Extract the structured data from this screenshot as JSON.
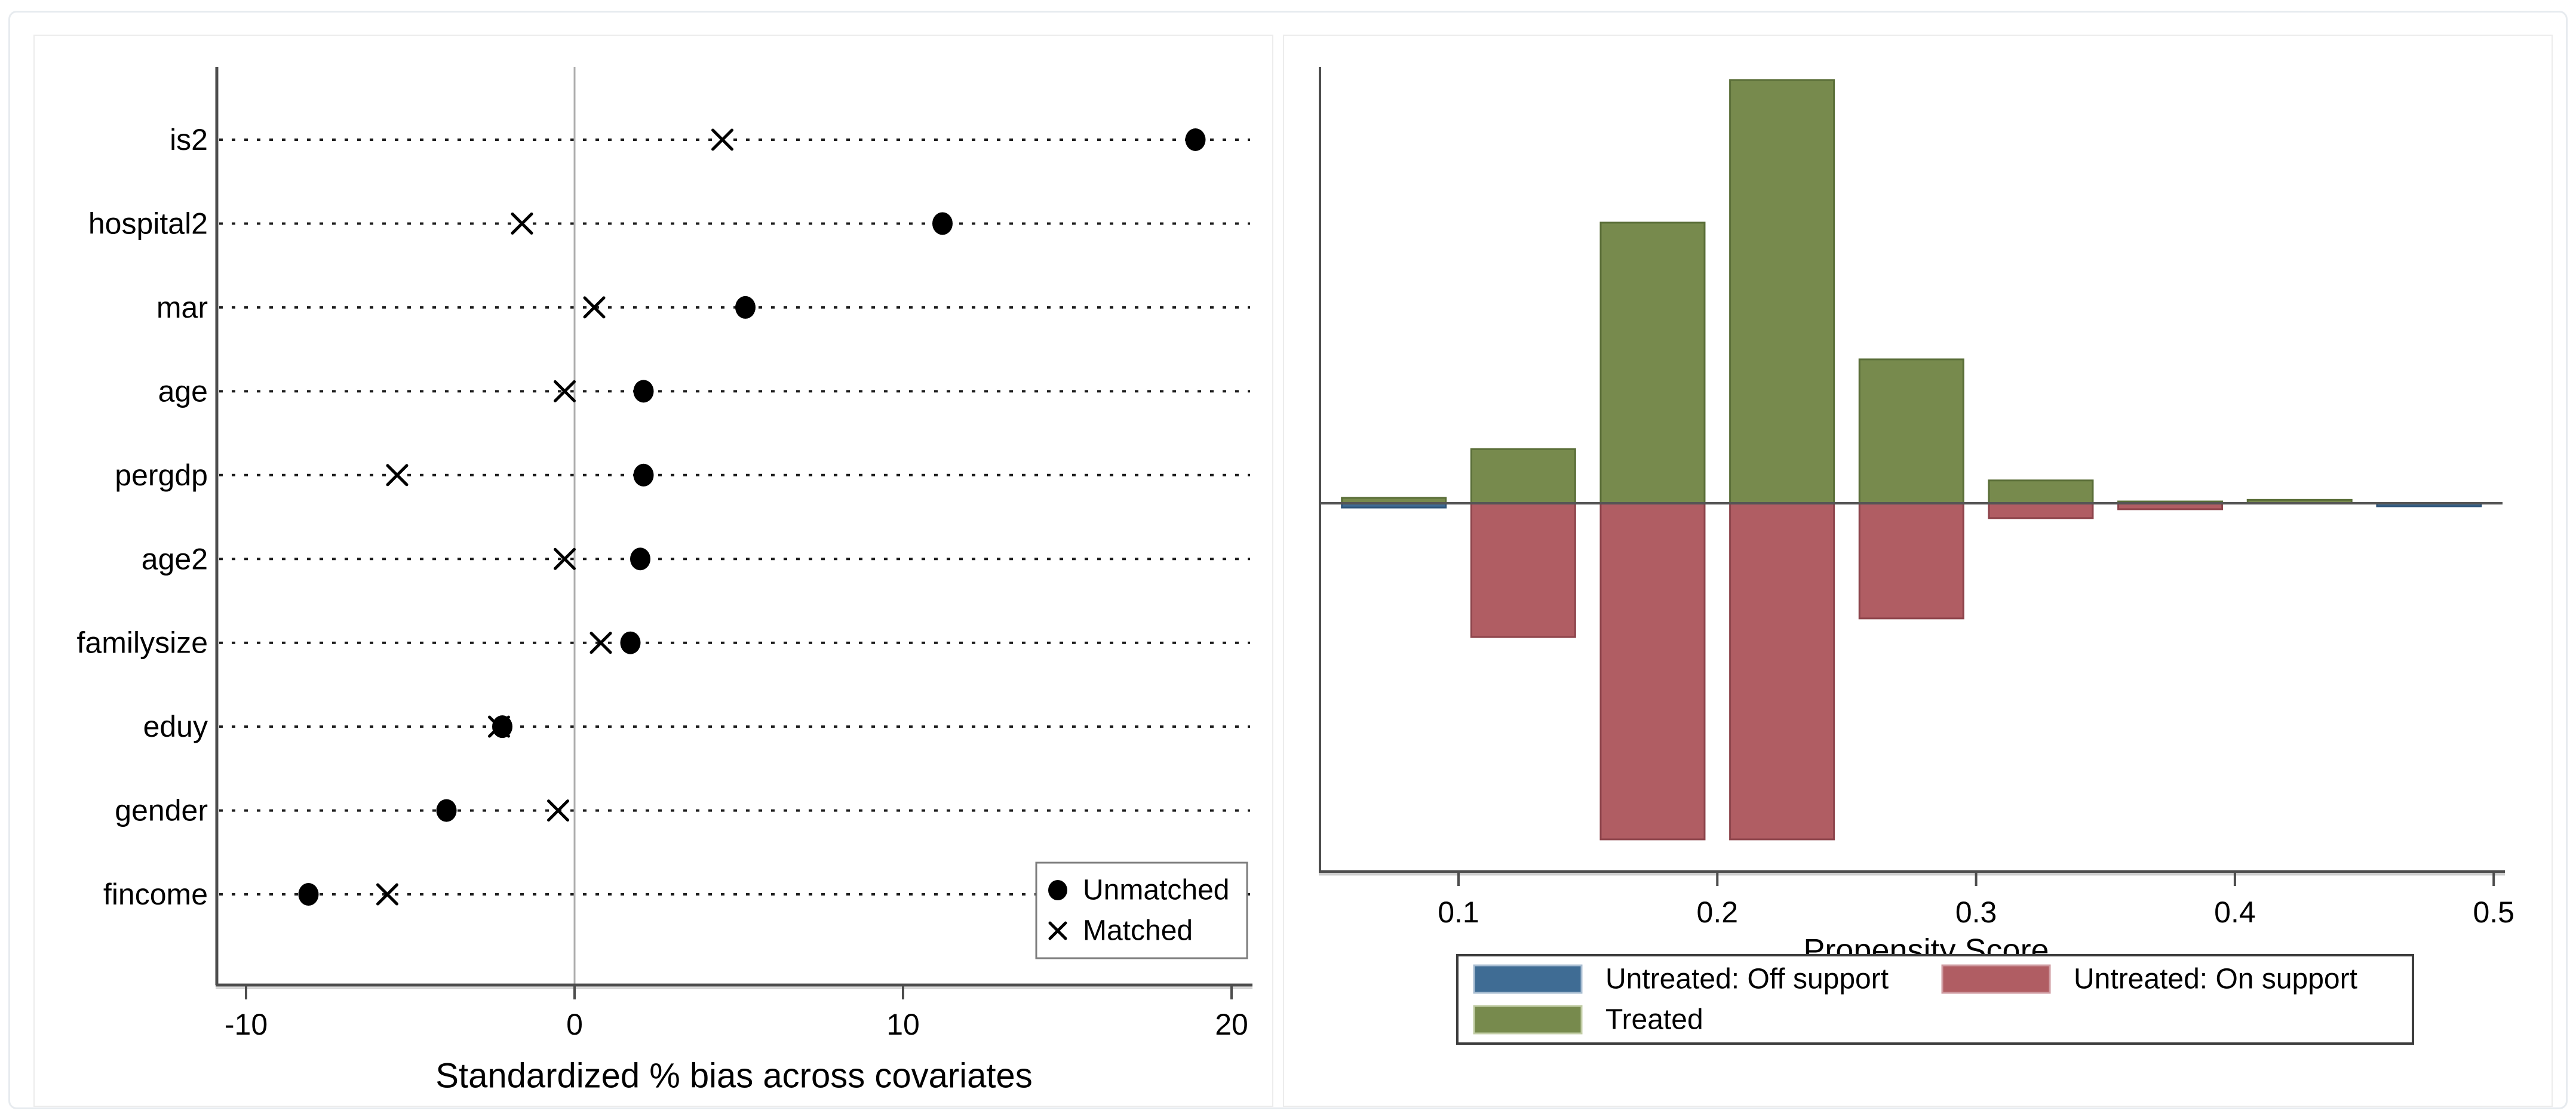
{
  "page": {
    "background": "#ffffff",
    "outer_border_color": "#e7ebef",
    "panel_border_color": "#ececec"
  },
  "chart_data": [
    {
      "type": "scatter",
      "name": "covariate-balance-dot-plot",
      "title": "",
      "xlabel": "Standardized % bias across covariates",
      "ylabel": "",
      "x_ticks": [
        -10,
        0,
        10,
        20
      ],
      "xlim": [
        -10.9,
        20.6
      ],
      "grid": "horizontal-dotted-rows",
      "zero_reference_line": true,
      "categories": [
        "is2",
        "hospital2",
        "mar",
        "age",
        "pergdp",
        "age2",
        "familysize",
        "eduy",
        "gender",
        "fincome"
      ],
      "series": [
        {
          "name": "Unmatched",
          "marker": "circle",
          "color": "#000000",
          "values": [
            18.9,
            11.2,
            5.2,
            2.1,
            2.1,
            2.0,
            1.7,
            -2.2,
            -3.9,
            -8.1
          ]
        },
        {
          "name": "Matched",
          "marker": "x",
          "color": "#000000",
          "values": [
            4.5,
            -1.6,
            0.6,
            -0.3,
            -5.4,
            -0.3,
            0.8,
            -2.3,
            -0.5,
            -5.7
          ]
        }
      ],
      "legend": {
        "position": "inside-bottom-right",
        "entries": [
          "Unmatched",
          "Matched"
        ]
      }
    },
    {
      "type": "bar",
      "subtype": "mirrored-histogram",
      "name": "propensity-score-histogram",
      "title": "",
      "xlabel": "Propensity Score",
      "ylabel": "",
      "x_ticks": [
        0.1,
        0.2,
        0.3,
        0.4,
        0.5
      ],
      "xlim": [
        0.045,
        0.505
      ],
      "bin_width": 0.05,
      "bin_starts": [
        0.05,
        0.1,
        0.15,
        0.2,
        0.25,
        0.3,
        0.35,
        0.4,
        0.45
      ],
      "units": "relative frequency (treated max = 1)",
      "series": [
        {
          "name": "Treated",
          "direction": "up",
          "color": "#778a4d",
          "edge_color": "#5a6e38",
          "values": [
            0.013,
            0.128,
            0.663,
            1.0,
            0.34,
            0.054,
            0.004,
            0.008,
            0
          ]
        },
        {
          "name": "Untreated: On support",
          "direction": "down",
          "color": "#b05d63",
          "edge_color": "#8d444b",
          "values": [
            0,
            0.316,
            0.794,
            0.794,
            0.272,
            0.035,
            0.014,
            0,
            0
          ]
        },
        {
          "name": "Untreated: Off support",
          "direction": "down",
          "color": "#3f6c94",
          "edge_color": "#2f557a",
          "values": [
            0.01,
            0,
            0,
            0,
            0,
            0,
            0,
            0,
            0.007
          ]
        }
      ],
      "legend": {
        "position": "below-axis",
        "rows": [
          [
            "Untreated: Off support",
            "Untreated: On support"
          ],
          [
            "Treated"
          ]
        ]
      }
    }
  ]
}
